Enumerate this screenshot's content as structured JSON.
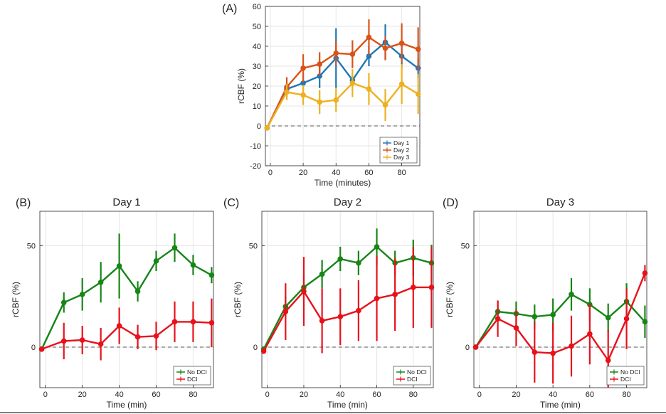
{
  "chart_data": [
    {
      "type": "line",
      "panel_label": "(A)",
      "title": "",
      "xlabel": "Time (minutes)",
      "ylabel": "rCBF (%)",
      "xlim": [
        -3,
        91
      ],
      "ylim": [
        -20,
        60
      ],
      "xticks": [
        0,
        20,
        40,
        60,
        80
      ],
      "yticks": [
        -20,
        -10,
        0,
        10,
        20,
        30,
        40,
        50,
        60
      ],
      "grid": true,
      "legend": "bottom-right",
      "x": [
        -2,
        10,
        20,
        30,
        40,
        50,
        60,
        70,
        80,
        90
      ],
      "series": [
        {
          "name": "Day 1",
          "color": "#1f77b4",
          "values": [
            -1,
            18.5,
            21.5,
            25,
            34,
            23,
            35,
            42,
            35,
            29
          ],
          "errors": [
            1,
            3,
            4,
            6,
            15,
            3,
            5,
            9,
            6,
            5
          ]
        },
        {
          "name": "Day 2",
          "color": "#d95319",
          "values": [
            -1,
            19.5,
            29,
            31,
            36.5,
            36,
            44.5,
            39,
            41.5,
            38.5
          ],
          "errors": [
            1,
            5,
            7,
            6,
            6,
            7,
            9,
            6,
            10,
            11
          ]
        },
        {
          "name": "Day 3",
          "color": "#edb120",
          "values": [
            -1,
            17,
            15.5,
            12,
            13,
            21.5,
            18.5,
            10.5,
            21,
            16
          ],
          "errors": [
            1,
            4,
            5,
            6,
            6,
            7,
            8,
            8,
            10,
            10
          ]
        }
      ]
    },
    {
      "type": "line",
      "panel_label": "(B)",
      "title": "Day 1",
      "xlabel": "Time (min)",
      "ylabel": "rCBF (%)",
      "xlim": [
        -3,
        91
      ],
      "ylim": [
        -20,
        67
      ],
      "xticks": [
        0,
        20,
        40,
        60,
        80
      ],
      "yticks": [
        0,
        50
      ],
      "grid": true,
      "legend": "bottom-right",
      "x": [
        -2,
        10,
        20,
        30,
        40,
        50,
        60,
        70,
        80,
        90
      ],
      "series": [
        {
          "name": "No DCI",
          "color": "#178517",
          "values": [
            -1,
            22,
            26,
            32,
            40,
            27.5,
            42.5,
            49,
            40.5,
            35.5
          ],
          "errors": [
            1,
            5,
            8,
            10,
            16,
            5,
            5,
            7,
            5,
            4
          ]
        },
        {
          "name": "DCI",
          "color": "#e8111b",
          "values": [
            -1,
            3,
            3.5,
            1.5,
            10.5,
            5,
            5.5,
            12.5,
            12.5,
            12
          ],
          "errors": [
            1,
            9,
            7,
            8,
            9,
            6,
            7,
            10,
            10,
            12
          ]
        }
      ]
    },
    {
      "type": "line",
      "panel_label": "(C)",
      "title": "Day 2",
      "xlabel": "Time (min)",
      "ylabel": "rCBF (%)",
      "xlim": [
        -3,
        91
      ],
      "ylim": [
        -20,
        67
      ],
      "xticks": [
        0,
        20,
        40,
        60,
        80
      ],
      "yticks": [
        0,
        50
      ],
      "grid": true,
      "legend": "bottom-right",
      "x": [
        -2,
        10,
        20,
        30,
        40,
        50,
        60,
        70,
        80,
        90
      ],
      "series": [
        {
          "name": "No DCI",
          "color": "#178517",
          "values": [
            -1,
            20,
            29.5,
            36,
            43.5,
            41.5,
            49.5,
            41.5,
            44,
            41.5
          ],
          "errors": [
            1,
            5,
            6,
            7,
            6,
            6,
            9,
            6,
            9,
            9
          ]
        },
        {
          "name": "DCI",
          "color": "#e8111b",
          "values": [
            -2,
            17.5,
            27.5,
            13,
            15,
            18,
            24,
            26,
            29.5,
            29.5
          ],
          "errors": [
            1,
            14,
            17,
            16,
            14,
            15,
            21,
            18,
            20,
            20
          ]
        }
      ]
    },
    {
      "type": "line",
      "panel_label": "(D)",
      "title": "Day 3",
      "xlabel": "Time (min)",
      "ylabel": "rCBF (%)",
      "xlim": [
        -3,
        91
      ],
      "ylim": [
        -20,
        67
      ],
      "xticks": [
        0,
        20,
        40,
        60,
        80
      ],
      "yticks": [
        0,
        50
      ],
      "grid": true,
      "legend": "bottom-right",
      "x": [
        -2,
        10,
        20,
        30,
        40,
        50,
        60,
        70,
        80,
        90
      ],
      "series": [
        {
          "name": "No DCI",
          "color": "#178517",
          "values": [
            0,
            17.5,
            16.5,
            15,
            16,
            26,
            21,
            14.5,
            22.5,
            12.5
          ],
          "errors": [
            1,
            5,
            6,
            6,
            8,
            8,
            8,
            7,
            9,
            8
          ]
        },
        {
          "name": "DCI",
          "color": "#e8111b",
          "values": [
            0,
            14,
            9.5,
            -2.5,
            -3,
            0.5,
            6.5,
            -6.5,
            14,
            36.5
          ],
          "errors": [
            1,
            9,
            9,
            15,
            15,
            15,
            15,
            15,
            15,
            4
          ]
        }
      ]
    }
  ]
}
